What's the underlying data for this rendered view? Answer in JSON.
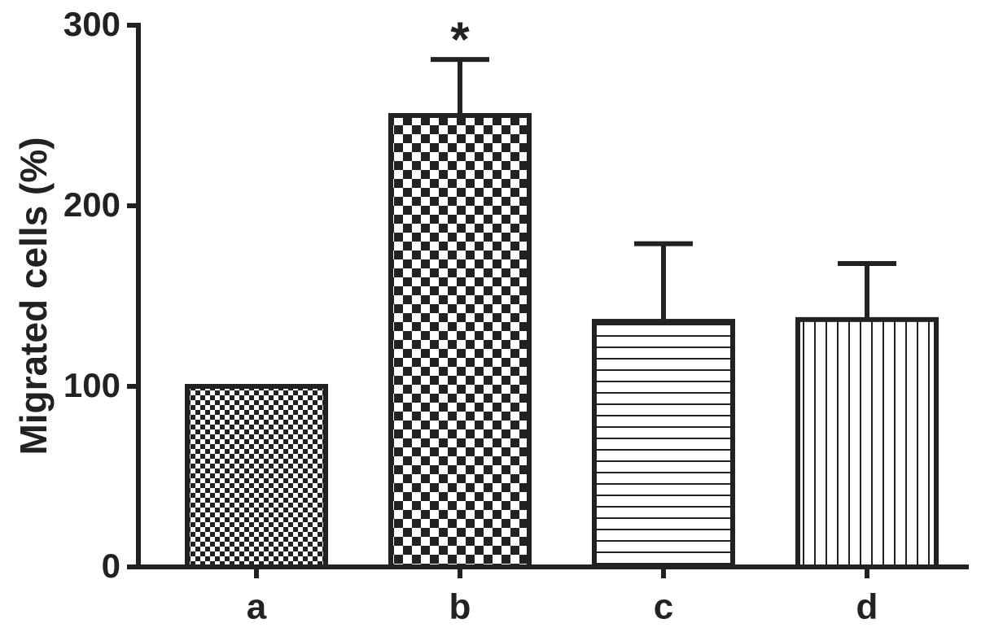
{
  "chart_data": {
    "type": "bar",
    "y_label": "Migrated cells (%)",
    "categories": [
      "a",
      "b",
      "c",
      "d"
    ],
    "values": [
      100,
      250,
      136,
      137
    ],
    "errors": [
      0,
      31,
      43,
      31
    ],
    "patterns": [
      "fine-checker",
      "checker",
      "horizontal",
      "vertical"
    ],
    "color": "#222222",
    "annotations": [
      {
        "text": "*",
        "category": "b"
      }
    ],
    "ylim": [
      0,
      300
    ],
    "yticks": [
      0,
      100,
      200,
      300
    ],
    "grid": false
  }
}
